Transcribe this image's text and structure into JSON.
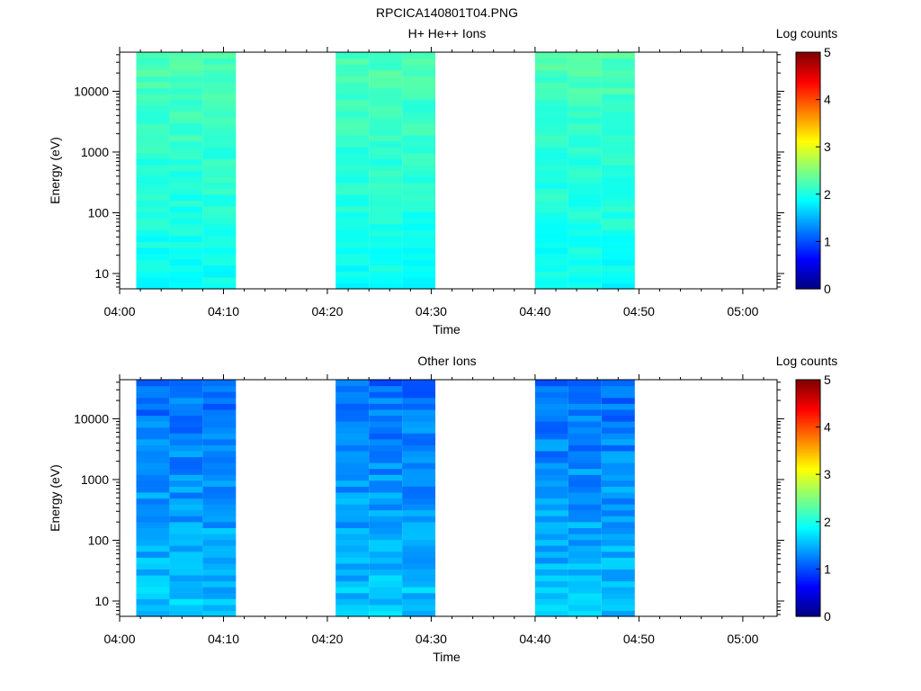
{
  "figure": {
    "title": "RPCICA140801T04.PNG"
  },
  "chart_data": [
    {
      "type": "heatmap",
      "title": "H+ He++ Ions",
      "xlabel": "Time",
      "ylabel": "Energy (eV)",
      "colorbar_label": "Log counts",
      "x_ticks": [
        "04:00",
        "04:10",
        "04:20",
        "04:30",
        "04:40",
        "04:50",
        "05:00"
      ],
      "xlim_minutes": [
        0,
        63.3
      ],
      "y_scale": "log",
      "y_ticks": [
        10,
        100,
        1000,
        10000
      ],
      "y_tick_labels": [
        "10",
        "100",
        "1000",
        "10000"
      ],
      "ylim": [
        5.6,
        44000
      ],
      "colorbar_ticks": [
        "0",
        "1",
        "2",
        "3",
        "4",
        "5"
      ],
      "colorbar_range": [
        0,
        5
      ],
      "columns": [
        {
          "start_min": 1.6,
          "end_min": 4.8,
          "seed": 11
        },
        {
          "start_min": 4.8,
          "end_min": 8.0,
          "seed": 12
        },
        {
          "start_min": 8.0,
          "end_min": 11.2,
          "seed": 13
        },
        {
          "start_min": 20.8,
          "end_min": 24.0,
          "seed": 21
        },
        {
          "start_min": 24.0,
          "end_min": 27.2,
          "seed": 22
        },
        {
          "start_min": 27.2,
          "end_min": 30.4,
          "seed": 23
        },
        {
          "start_min": 40.0,
          "end_min": 43.2,
          "seed": 31
        },
        {
          "start_min": 43.2,
          "end_min": 46.4,
          "seed": 32
        },
        {
          "start_min": 46.4,
          "end_min": 49.6,
          "seed": 33
        }
      ],
      "level_profile": {
        "high_energy": 2.25,
        "low_energy": 1.9,
        "noise": 0.12
      }
    },
    {
      "type": "heatmap",
      "title": "Other Ions",
      "xlabel": "Time",
      "ylabel": "Energy (eV)",
      "colorbar_label": "Log counts",
      "x_ticks": [
        "04:00",
        "04:10",
        "04:20",
        "04:30",
        "04:40",
        "04:50",
        "05:00"
      ],
      "xlim_minutes": [
        0,
        63.3
      ],
      "y_scale": "log",
      "y_ticks": [
        10,
        100,
        1000,
        10000
      ],
      "y_tick_labels": [
        "10",
        "100",
        "1000",
        "10000"
      ],
      "ylim": [
        5.6,
        44000
      ],
      "colorbar_ticks": [
        "0",
        "1",
        "2",
        "3",
        "4",
        "5"
      ],
      "colorbar_range": [
        0,
        5
      ],
      "columns": [
        {
          "start_min": 1.6,
          "end_min": 4.8,
          "seed": 41
        },
        {
          "start_min": 4.8,
          "end_min": 8.0,
          "seed": 42
        },
        {
          "start_min": 8.0,
          "end_min": 11.2,
          "seed": 43
        },
        {
          "start_min": 20.8,
          "end_min": 24.0,
          "seed": 51
        },
        {
          "start_min": 24.0,
          "end_min": 27.2,
          "seed": 52
        },
        {
          "start_min": 27.2,
          "end_min": 30.4,
          "seed": 53
        },
        {
          "start_min": 40.0,
          "end_min": 43.2,
          "seed": 61
        },
        {
          "start_min": 43.2,
          "end_min": 46.4,
          "seed": 62
        },
        {
          "start_min": 46.4,
          "end_min": 49.6,
          "seed": 63
        }
      ],
      "level_profile": {
        "high_energy": 1.15,
        "low_energy": 1.6,
        "noise": 0.2
      }
    }
  ]
}
